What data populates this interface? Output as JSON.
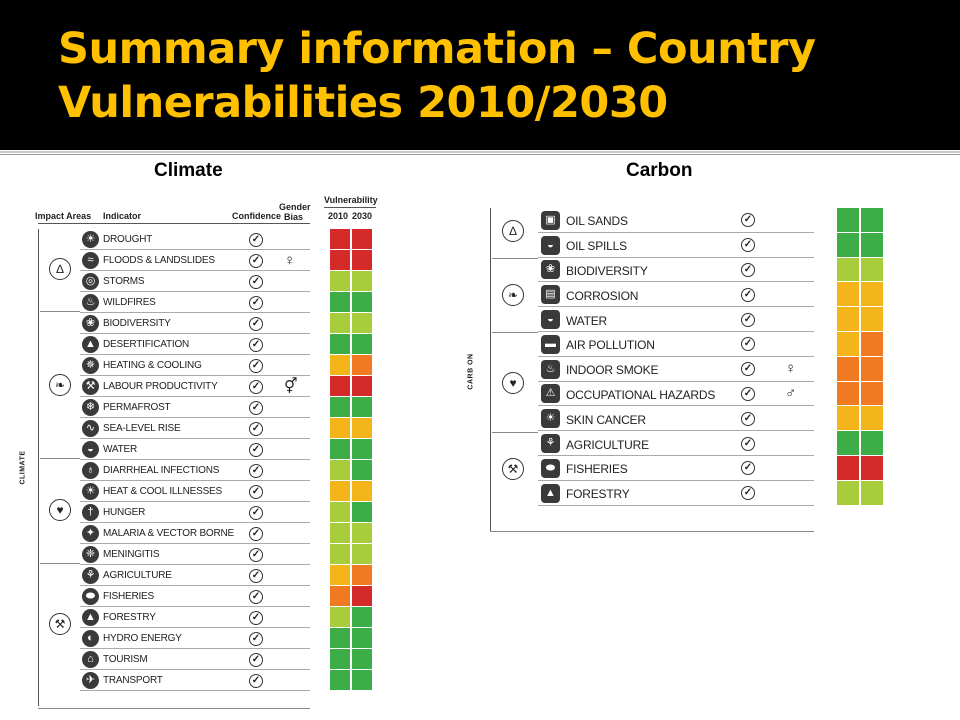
{
  "slide": {
    "title": "Summary information – Country Vulnerabilities 2010/2030"
  },
  "colors": {
    "red": "#d42a2a",
    "orange": "#f07a21",
    "yellow": "#f3b519",
    "lightgreen": "#a7cc3c",
    "green": "#3cad47"
  },
  "climate": {
    "heading": "Climate",
    "headers": {
      "impact_areas": "Impact Areas",
      "indicator": "Indicator",
      "confidence": "Confidence",
      "gender_line1": "Gender",
      "gender_line2": "Bias",
      "vulnerability": "Vulnerability",
      "y2010": "2010",
      "y2030": "2030"
    },
    "side_label": "CLIMATE",
    "group_icons": [
      "tornado-icon",
      "leaf-icon",
      "heart-icon",
      "tools-icon"
    ],
    "rows": [
      {
        "label": "DROUGHT",
        "icon": "thermometer-icon",
        "gender": "",
        "v2010": "red",
        "v2030": "red"
      },
      {
        "label": "FLOODS & LANDSLIDES",
        "icon": "flood-icon",
        "gender": "female",
        "v2010": "red",
        "v2030": "red"
      },
      {
        "label": "STORMS",
        "icon": "storm-icon",
        "gender": "",
        "v2010": "lightgreen",
        "v2030": "lightgreen"
      },
      {
        "label": "WILDFIRES",
        "icon": "fire-icon",
        "gender": "",
        "v2010": "green",
        "v2030": "green"
      },
      {
        "label": "BIODIVERSITY",
        "icon": "biodiversity-icon",
        "gender": "",
        "v2010": "lightgreen",
        "v2030": "lightgreen"
      },
      {
        "label": "DESERTIFICATION",
        "icon": "desert-icon",
        "gender": "",
        "v2010": "green",
        "v2030": "green"
      },
      {
        "label": "HEATING & COOLING",
        "icon": "fan-icon",
        "gender": "",
        "v2010": "yellow",
        "v2030": "orange"
      },
      {
        "label": "LABOUR PRODUCTIVITY",
        "icon": "worker-icon",
        "gender": "both",
        "v2010": "red",
        "v2030": "red"
      },
      {
        "label": "PERMAFROST",
        "icon": "snowflake-icon",
        "gender": "",
        "v2010": "green",
        "v2030": "green"
      },
      {
        "label": "SEA-LEVEL RISE",
        "icon": "wave-icon",
        "gender": "",
        "v2010": "yellow",
        "v2030": "yellow"
      },
      {
        "label": "WATER",
        "icon": "water-drop-icon",
        "gender": "",
        "v2010": "green",
        "v2030": "green"
      },
      {
        "label": "DIARRHEAL INFECTIONS",
        "icon": "bottle-icon",
        "gender": "",
        "v2010": "lightgreen",
        "v2030": "green"
      },
      {
        "label": "HEAT & COOL ILLNESSES",
        "icon": "thermometer-icon",
        "gender": "",
        "v2010": "yellow",
        "v2030": "yellow"
      },
      {
        "label": "HUNGER",
        "icon": "fork-icon",
        "gender": "",
        "v2010": "lightgreen",
        "v2030": "green"
      },
      {
        "label": "MALARIA & VECTOR BORNE",
        "icon": "mosquito-icon",
        "gender": "",
        "v2010": "lightgreen",
        "v2030": "lightgreen"
      },
      {
        "label": "MENINGITIS",
        "icon": "virus-icon",
        "gender": "",
        "v2010": "lightgreen",
        "v2030": "lightgreen"
      },
      {
        "label": "AGRICULTURE",
        "icon": "wheat-icon",
        "gender": "",
        "v2010": "yellow",
        "v2030": "orange"
      },
      {
        "label": "FISHERIES",
        "icon": "fish-icon",
        "gender": "",
        "v2010": "orange",
        "v2030": "red"
      },
      {
        "label": "FORESTRY",
        "icon": "tree-icon",
        "gender": "",
        "v2010": "lightgreen",
        "v2030": "green"
      },
      {
        "label": "HYDRO ENERGY",
        "icon": "hydro-icon",
        "gender": "",
        "v2010": "green",
        "v2030": "green"
      },
      {
        "label": "TOURISM",
        "icon": "tourism-icon",
        "gender": "",
        "v2010": "green",
        "v2030": "green"
      },
      {
        "label": "TRANSPORT",
        "icon": "transport-icon",
        "gender": "",
        "v2010": "green",
        "v2030": "green"
      }
    ]
  },
  "carbon": {
    "heading": "Carbon",
    "side_label": "CARB ON",
    "group_icons": [
      "tornado-icon",
      "leaf-icon",
      "heart-icon",
      "tools-icon"
    ],
    "rows": [
      {
        "label": "OIL SANDS",
        "icon": "oil-icon",
        "gender": "",
        "v2010": "green",
        "v2030": "green"
      },
      {
        "label": "OIL SPILLS",
        "icon": "oil-spill-icon",
        "gender": "",
        "v2010": "green",
        "v2030": "green"
      },
      {
        "label": "BIODIVERSITY",
        "icon": "biodiversity-icon",
        "gender": "",
        "v2010": "lightgreen",
        "v2030": "lightgreen"
      },
      {
        "label": "CORROSION",
        "icon": "corrosion-icon",
        "gender": "",
        "v2010": "yellow",
        "v2030": "yellow"
      },
      {
        "label": "WATER",
        "icon": "water-drop-icon",
        "gender": "",
        "v2010": "yellow",
        "v2030": "yellow"
      },
      {
        "label": "AIR POLLUTION",
        "icon": "car-icon",
        "gender": "",
        "v2010": "yellow",
        "v2030": "orange"
      },
      {
        "label": "INDOOR SMOKE",
        "icon": "smoke-icon",
        "gender": "female",
        "v2010": "orange",
        "v2030": "orange"
      },
      {
        "label": "OCCUPATIONAL HAZARDS",
        "icon": "hazard-icon",
        "gender": "male",
        "v2010": "orange",
        "v2030": "orange"
      },
      {
        "label": "SKIN CANCER",
        "icon": "sun-icon",
        "gender": "",
        "v2010": "yellow",
        "v2030": "yellow"
      },
      {
        "label": "AGRICULTURE",
        "icon": "wheat-icon",
        "gender": "",
        "v2010": "green",
        "v2030": "green"
      },
      {
        "label": "FISHERIES",
        "icon": "fish-icon",
        "gender": "",
        "v2010": "red",
        "v2030": "red"
      },
      {
        "label": "FORESTRY",
        "icon": "tree-icon",
        "gender": "",
        "v2010": "lightgreen",
        "v2030": "lightgreen"
      }
    ]
  }
}
